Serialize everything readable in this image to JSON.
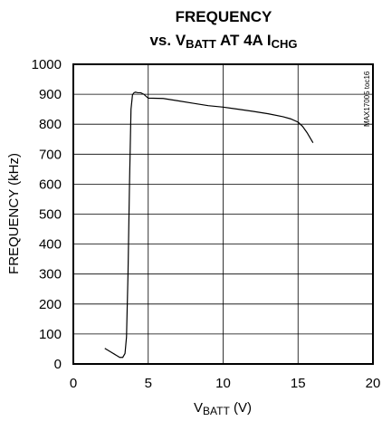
{
  "chart_data": {
    "type": "line",
    "title_line1": "FREQUENCY",
    "title_line2": "vs. VBATT AT 4A ICHG",
    "title_line2_parts": {
      "prefix": "vs. V",
      "sub1": "BATT",
      "middle": " AT 4A I",
      "sub2": "CHG"
    },
    "xlabel": "VBATT (V)",
    "xlabel_parts": {
      "main": "V",
      "sub": "BATT",
      "suffix": " (V)"
    },
    "ylabel": "FREQUENCY (kHz)",
    "xlim": [
      0,
      20
    ],
    "ylim": [
      0,
      1000
    ],
    "x_ticks": [
      "0",
      "5",
      "10",
      "15",
      "20"
    ],
    "y_ticks": [
      "0",
      "100",
      "200",
      "300",
      "400",
      "500",
      "600",
      "700",
      "800",
      "900",
      "1000"
    ],
    "grid": true,
    "figure_id": "MAX17005 toc16",
    "series": [
      {
        "x": [
          2.1,
          2.5,
          2.9,
          3.1,
          3.3,
          3.45,
          3.55,
          3.65,
          3.75,
          3.85,
          3.95,
          4.05,
          4.15,
          4.3,
          4.5,
          4.7,
          5.0,
          6.0,
          7.0,
          8.0,
          9.0,
          10.0,
          11.0,
          12.0,
          13.0,
          14.0,
          14.5,
          15.0,
          15.3,
          15.6,
          15.8,
          16.0
        ],
        "y": [
          52,
          40,
          28,
          22,
          22,
          35,
          90,
          300,
          600,
          850,
          898,
          905,
          907,
          905,
          905,
          900,
          887,
          886,
          878,
          870,
          862,
          857,
          850,
          843,
          835,
          825,
          818,
          807,
          793,
          772,
          755,
          738
        ]
      }
    ]
  }
}
